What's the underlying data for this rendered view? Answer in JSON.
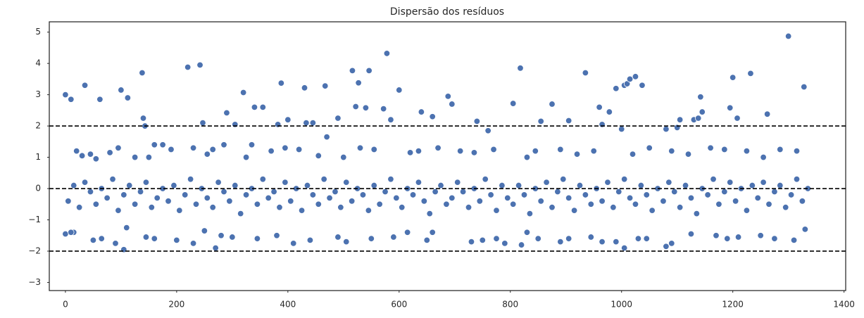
{
  "chart_data": {
    "type": "scatter",
    "title": "Dispersão dos resíduos",
    "xlim": [
      -29,
      1403
    ],
    "ylim": [
      -3.26,
      5.33
    ],
    "xticks": [
      0,
      200,
      400,
      600,
      800,
      1000,
      1200,
      1400
    ],
    "yticks": [
      {
        "value": -3,
        "label": "−3"
      },
      {
        "value": -2,
        "label": "−2"
      },
      {
        "value": -1,
        "label": "−1"
      },
      0,
      1,
      2,
      3,
      4,
      5
    ],
    "hlines": [
      -2,
      0,
      2
    ],
    "series": [
      {
        "color": "#4c72b0",
        "x": [
          5,
          15,
          25,
          35,
          45,
          55,
          65,
          75,
          85,
          95,
          105,
          115,
          125,
          135,
          145,
          155,
          165,
          175,
          185,
          195,
          205,
          215,
          225,
          235,
          245,
          255,
          265,
          275,
          285,
          295,
          305,
          315,
          325,
          335,
          345,
          355,
          365,
          375,
          385,
          395,
          405,
          415,
          425,
          435,
          445,
          455,
          465,
          475,
          485,
          495,
          505,
          515,
          525,
          535,
          545,
          555,
          565,
          575,
          585,
          595,
          605,
          615,
          625,
          635,
          645,
          655,
          665,
          675,
          685,
          695,
          705,
          715,
          725,
          735,
          745,
          755,
          765,
          775,
          785,
          795,
          805,
          815,
          825,
          835,
          845,
          855,
          865,
          875,
          885,
          895,
          905,
          915,
          925,
          935,
          945,
          955,
          965,
          975,
          985,
          995,
          1005,
          1015,
          1025,
          1035,
          1045,
          1055,
          1065,
          1075,
          1085,
          1095,
          1105,
          1115,
          1125,
          1135,
          1145,
          1155,
          1165,
          1175,
          1185,
          1195,
          1205,
          1215,
          1225,
          1235,
          1245,
          1255,
          1265,
          1275,
          1285,
          1295,
          1305,
          1315,
          1325,
          1335,
          20,
          30,
          45,
          55,
          80,
          95,
          125,
          150,
          160,
          175,
          190,
          230,
          255,
          265,
          285,
          325,
          335,
          370,
          395,
          420,
          455,
          500,
          530,
          555,
          620,
          635,
          670,
          710,
          735,
          770,
          830,
          845,
          890,
          920,
          950,
          1020,
          1050,
          1090,
          1120,
          1160,
          1185,
          1225,
          1255,
          1285,
          1315,
          15,
          50,
          65,
          90,
          110,
          145,
          160,
          200,
          230,
          250,
          280,
          300,
          345,
          380,
          410,
          440,
          490,
          505,
          550,
          590,
          615,
          650,
          660,
          730,
          750,
          775,
          790,
          830,
          850,
          890,
          905,
          945,
          965,
          990,
          1030,
          1045,
          1090,
          1125,
          1170,
          1190,
          1210,
          1250,
          1275,
          1310,
          1330,
          0,
          0,
          10,
          10,
          35,
          62,
          100,
          112,
          138,
          140,
          143,
          220,
          242,
          247,
          290,
          305,
          320,
          340,
          355,
          382,
          388,
          400,
          430,
          433,
          445,
          467,
          470,
          490,
          516,
          522,
          527,
          540,
          546,
          572,
          578,
          585,
          600,
          640,
          660,
          688,
          695,
          740,
          760,
          805,
          818,
          855,
          875,
          905,
          935,
          960,
          965,
          978,
          990,
          1000,
          1005,
          1010,
          1015,
          1025,
          1037,
          1080,
          1100,
          1105,
          1130,
          1138,
          1142,
          1145,
          1195,
          1200,
          1208,
          1232,
          1262,
          1300,
          1328,
          105,
          270,
          820,
          1005,
          1080
        ],
        "values": [
          -0.4,
          0.1,
          -0.6,
          0.2,
          -0.1,
          -0.5,
          0.0,
          -0.3,
          0.3,
          -0.7,
          -0.2,
          0.1,
          -0.5,
          -0.1,
          0.2,
          -0.6,
          -0.3,
          0.0,
          -0.4,
          0.1,
          -0.7,
          -0.2,
          0.3,
          -0.5,
          0.0,
          -0.3,
          -0.6,
          0.2,
          -0.1,
          -0.4,
          0.1,
          -0.8,
          -0.2,
          0.0,
          -0.5,
          0.3,
          -0.3,
          -0.1,
          -0.6,
          0.2,
          -0.4,
          0.0,
          -0.7,
          0.1,
          -0.2,
          -0.5,
          0.3,
          -0.3,
          -0.1,
          -0.6,
          0.2,
          -0.4,
          0.0,
          -0.2,
          -0.7,
          0.1,
          -0.5,
          -0.1,
          0.3,
          -0.3,
          -0.6,
          0.0,
          -0.2,
          0.2,
          -0.4,
          -0.8,
          -0.1,
          0.1,
          -0.5,
          -0.3,
          0.2,
          -0.1,
          -0.6,
          0.0,
          -0.4,
          0.3,
          -0.2,
          -0.7,
          0.1,
          -0.3,
          -0.5,
          0.1,
          -0.2,
          -0.8,
          0.0,
          -0.4,
          0.2,
          -0.6,
          -0.1,
          0.3,
          -0.3,
          -0.7,
          0.1,
          -0.2,
          -0.5,
          0.0,
          -0.4,
          0.2,
          -0.6,
          -0.1,
          0.3,
          -0.3,
          -0.5,
          0.1,
          -0.2,
          -0.7,
          0.0,
          -0.4,
          0.2,
          -0.1,
          -0.6,
          0.1,
          -0.3,
          -0.8,
          0.0,
          -0.2,
          0.3,
          -0.5,
          -0.1,
          0.2,
          -0.4,
          0.0,
          -0.7,
          0.1,
          -0.3,
          0.2,
          -0.5,
          -0.1,
          0.1,
          -0.6,
          -0.2,
          0.3,
          -0.4,
          0.0,
          1.2,
          1.05,
          1.1,
          0.95,
          1.15,
          1.3,
          1.0,
          1.0,
          1.4,
          1.4,
          1.25,
          1.3,
          1.1,
          1.25,
          1.4,
          1.0,
          1.4,
          1.2,
          1.3,
          1.25,
          1.05,
          1.0,
          1.3,
          1.25,
          1.15,
          1.2,
          1.3,
          1.2,
          1.15,
          1.25,
          1.0,
          1.2,
          1.25,
          1.1,
          1.2,
          1.1,
          1.3,
          1.2,
          1.1,
          1.3,
          1.25,
          1.2,
          1.0,
          1.25,
          1.2,
          -1.4,
          -1.65,
          -1.6,
          -1.75,
          -1.25,
          -1.55,
          -1.6,
          -1.65,
          -1.75,
          -1.35,
          -1.5,
          -1.55,
          -1.6,
          -1.5,
          -1.75,
          -1.65,
          -1.55,
          -1.7,
          -1.6,
          -1.55,
          -1.4,
          -1.65,
          -1.4,
          -1.7,
          -1.65,
          -1.6,
          -1.75,
          -1.4,
          -1.6,
          -1.7,
          -1.6,
          -1.55,
          -1.7,
          -1.7,
          -1.6,
          -1.6,
          -1.75,
          -1.45,
          -1.5,
          -1.6,
          -1.55,
          -1.5,
          -1.6,
          -1.65,
          -1.3,
          -1.45,
          3.0,
          2.85,
          -1.4,
          3.3,
          2.85,
          3.15,
          2.9,
          3.7,
          2.25,
          2.0,
          3.88,
          3.95,
          2.1,
          2.42,
          2.05,
          3.07,
          2.6,
          2.6,
          2.05,
          3.37,
          2.2,
          3.22,
          2.1,
          2.1,
          3.28,
          1.65,
          2.25,
          3.77,
          2.62,
          3.38,
          2.58,
          3.77,
          2.55,
          4.32,
          2.2,
          3.15,
          2.45,
          2.3,
          2.95,
          2.7,
          2.15,
          1.85,
          2.72,
          3.85,
          2.15,
          2.7,
          2.17,
          3.7,
          2.6,
          2.05,
          2.45,
          3.2,
          1.9,
          3.3,
          3.35,
          3.5,
          3.58,
          3.3,
          1.9,
          1.95,
          2.2,
          2.2,
          2.25,
          2.93,
          2.45,
          2.58,
          3.55,
          2.25,
          3.68,
          2.38,
          4.87,
          3.25,
          -1.95,
          -1.9,
          -1.8,
          -1.9,
          -1.85
        ]
      }
    ]
  }
}
